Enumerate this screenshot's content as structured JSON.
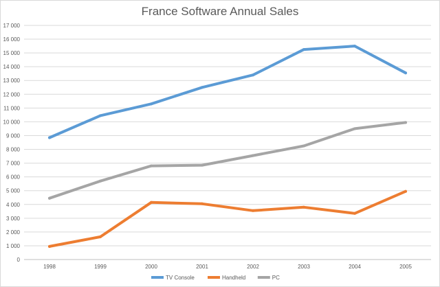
{
  "chart_data": {
    "type": "line",
    "title": "France Software Annual Sales",
    "xlabel": "",
    "ylabel": "",
    "categories": [
      "1998",
      "1999",
      "2000",
      "2001",
      "2002",
      "2003",
      "2004",
      "2005"
    ],
    "ylim": [
      0,
      17000
    ],
    "y_ticks": [
      "0",
      "1 000",
      "2 000",
      "3 000",
      "4 000",
      "5 000",
      "6 000",
      "7 000",
      "8 000",
      "9 000",
      "10 000",
      "11 000",
      "12 000",
      "13 000",
      "14 000",
      "15 000",
      "16 000",
      "17 000"
    ],
    "y_tick_values": [
      0,
      1000,
      2000,
      3000,
      4000,
      5000,
      6000,
      7000,
      8000,
      9000,
      10000,
      11000,
      12000,
      13000,
      14000,
      15000,
      16000,
      17000
    ],
    "grid": true,
    "legend_position": "bottom",
    "series": [
      {
        "name": "TV Console",
        "color": "#5b9bd5",
        "values": [
          8850,
          10450,
          11300,
          12500,
          13400,
          15250,
          15500,
          13550
        ]
      },
      {
        "name": "Handheld",
        "color": "#ed7d31",
        "values": [
          950,
          1650,
          4150,
          4050,
          3550,
          3800,
          3350,
          4950
        ]
      },
      {
        "name": "PC",
        "color": "#a5a5a5",
        "values": [
          4450,
          5700,
          6800,
          6850,
          7550,
          8250,
          9500,
          9950
        ]
      }
    ]
  }
}
